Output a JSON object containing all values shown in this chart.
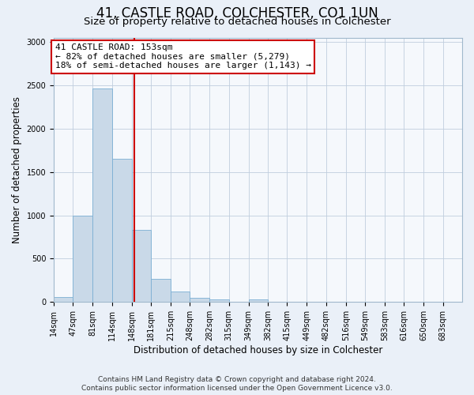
{
  "title": "41, CASTLE ROAD, COLCHESTER, CO1 1UN",
  "subtitle": "Size of property relative to detached houses in Colchester",
  "xlabel": "Distribution of detached houses by size in Colchester",
  "ylabel": "Number of detached properties",
  "bin_labels": [
    "14sqm",
    "47sqm",
    "81sqm",
    "114sqm",
    "148sqm",
    "181sqm",
    "215sqm",
    "248sqm",
    "282sqm",
    "315sqm",
    "349sqm",
    "382sqm",
    "415sqm",
    "449sqm",
    "482sqm",
    "516sqm",
    "549sqm",
    "583sqm",
    "616sqm",
    "650sqm",
    "683sqm"
  ],
  "bar_heights": [
    55,
    1000,
    2460,
    1650,
    830,
    265,
    120,
    50,
    30,
    0,
    35,
    0,
    0,
    0,
    0,
    0,
    0,
    0,
    0,
    0,
    0
  ],
  "bar_color": "#c9d9e8",
  "bar_edge_color": "#7bafd4",
  "property_line_x": 153,
  "bin_edges": [
    14,
    47,
    81,
    114,
    148,
    181,
    215,
    248,
    282,
    315,
    349,
    382,
    415,
    449,
    482,
    516,
    549,
    583,
    616,
    650,
    683,
    716
  ],
  "annotation_title": "41 CASTLE ROAD: 153sqm",
  "annotation_line1": "← 82% of detached houses are smaller (5,279)",
  "annotation_line2": "18% of semi-detached houses are larger (1,143) →",
  "annotation_box_color": "#ffffff",
  "annotation_box_edge": "#cc0000",
  "vline_color": "#cc0000",
  "ylim": [
    0,
    3050
  ],
  "yticks": [
    0,
    500,
    1000,
    1500,
    2000,
    2500,
    3000
  ],
  "footer1": "Contains HM Land Registry data © Crown copyright and database right 2024.",
  "footer2": "Contains public sector information licensed under the Open Government Licence v3.0.",
  "background_color": "#eaf0f8",
  "plot_bg_color": "#f5f8fc",
  "grid_color": "#c0cede",
  "title_fontsize": 12,
  "subtitle_fontsize": 9.5,
  "axis_label_fontsize": 8.5,
  "tick_fontsize": 7,
  "annot_fontsize": 8,
  "footer_fontsize": 6.5
}
